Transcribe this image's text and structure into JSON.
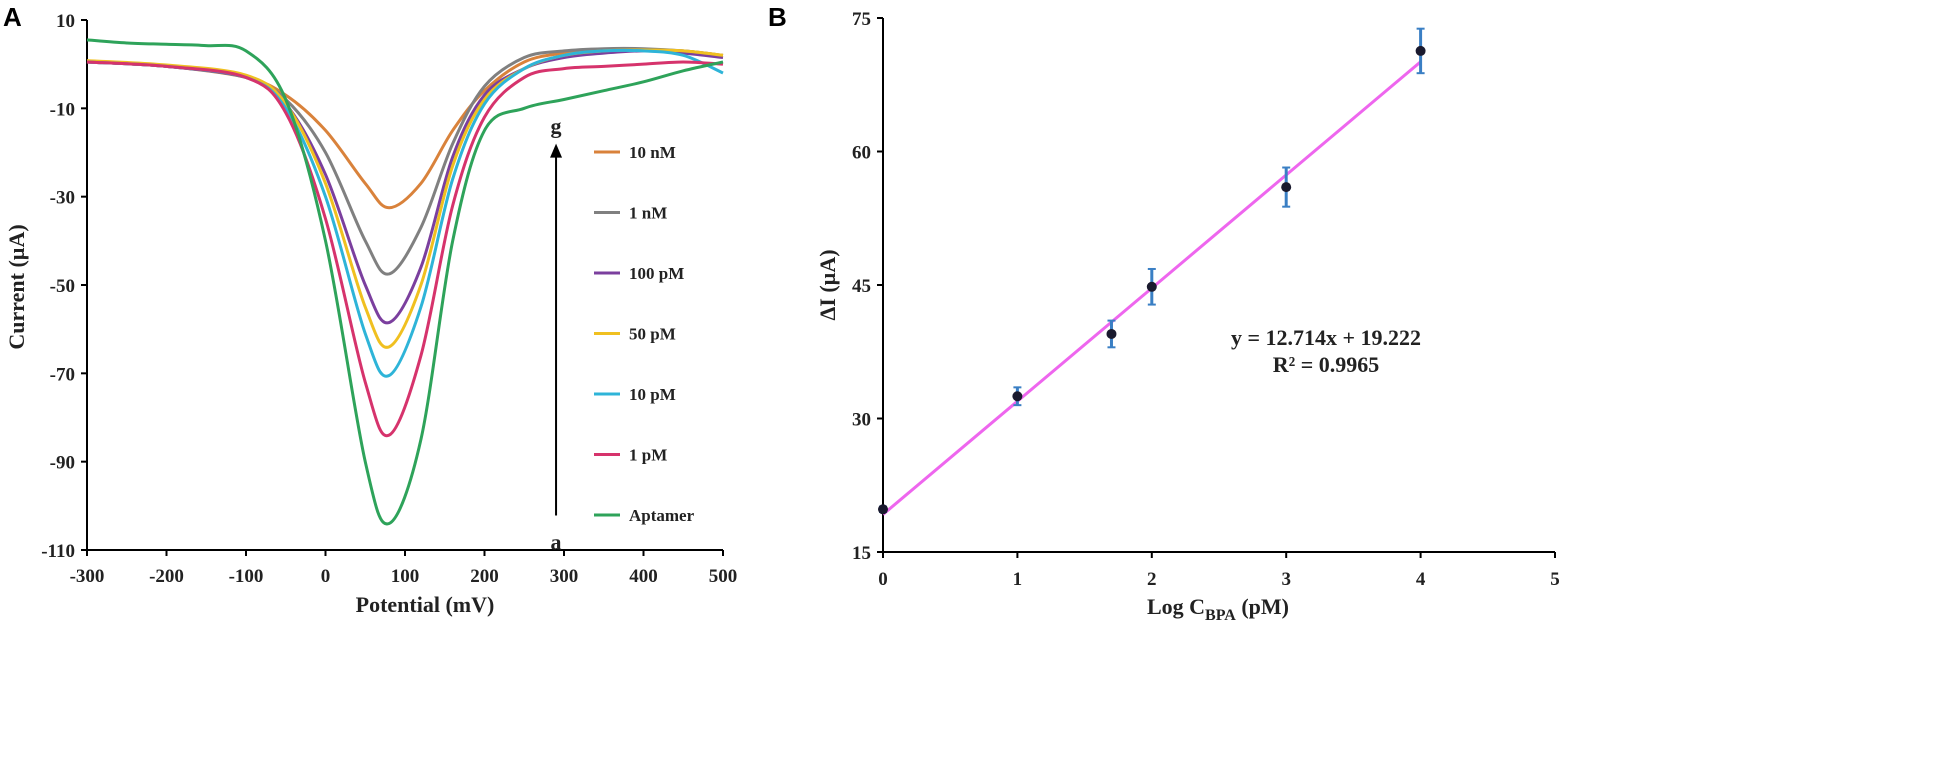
{
  "panels": {
    "a": {
      "letter": "A"
    },
    "b": {
      "letter": "B"
    }
  },
  "chart_data": [
    {
      "type": "line",
      "panel": "A",
      "xlabel": "Potential (mV)",
      "ylabel": "Current (µA)",
      "xlim": [
        -300,
        500
      ],
      "ylim": [
        -110,
        10
      ],
      "xticks": [
        -300,
        -200,
        -100,
        0,
        100,
        200,
        300,
        400,
        500
      ],
      "yticks": [
        10,
        -10,
        -30,
        -50,
        -70,
        -90,
        -110
      ],
      "xtick_labels": [
        "-300",
        "-200",
        "-100",
        "0",
        "100",
        "200",
        "300",
        "400",
        "500"
      ],
      "ytick_labels": [
        "10",
        "-10",
        "-30",
        "-50",
        "-70",
        "-90",
        "-110"
      ],
      "grid": false,
      "arrow": {
        "from_label": "a",
        "to_label": "g",
        "x": 290,
        "y_from": -104,
        "y_to": -18
      },
      "series": [
        {
          "name": "10 nM",
          "color": "#d9823b",
          "x": [
            -300,
            -200,
            -100,
            -50,
            0,
            50,
            80,
            120,
            160,
            200,
            250,
            300,
            350,
            400,
            450,
            500
          ],
          "y": [
            0.5,
            -0.5,
            -3,
            -7,
            -15,
            -27,
            -32.5,
            -27,
            -15,
            -6,
            0.5,
            2.5,
            3,
            3.2,
            3,
            2
          ]
        },
        {
          "name": "1 nM",
          "color": "#808080",
          "x": [
            -300,
            -200,
            -100,
            -50,
            0,
            50,
            80,
            120,
            160,
            200,
            250,
            300,
            350,
            400,
            450,
            500
          ],
          "y": [
            0.5,
            -0.5,
            -3,
            -8,
            -20,
            -40,
            -47.5,
            -37,
            -18,
            -5,
            1.5,
            3,
            3.5,
            3.5,
            3,
            2
          ]
        },
        {
          "name": "100 pM",
          "color": "#7b3f9e",
          "x": [
            -300,
            -200,
            -100,
            -50,
            0,
            50,
            80,
            120,
            160,
            200,
            250,
            300,
            350,
            400,
            450,
            500
          ],
          "y": [
            0.5,
            -0.5,
            -3,
            -9,
            -25,
            -50,
            -58.5,
            -46,
            -21,
            -7,
            -1,
            1.5,
            2.5,
            3,
            2.5,
            1.5
          ]
        },
        {
          "name": "50 pM",
          "color": "#f0c020",
          "x": [
            -300,
            -200,
            -100,
            -50,
            0,
            50,
            80,
            120,
            160,
            200,
            250,
            300,
            350,
            400,
            450,
            500
          ],
          "y": [
            0.8,
            -0.2,
            -2.5,
            -9,
            -27,
            -55,
            -64,
            -50,
            -23,
            -8,
            -1,
            2,
            3,
            3.2,
            3,
            2
          ]
        },
        {
          "name": "10 pM",
          "color": "#2eb4d8",
          "x": [
            -300,
            -200,
            -100,
            -50,
            0,
            50,
            80,
            120,
            160,
            200,
            250,
            300,
            350,
            400,
            450,
            500
          ],
          "y": [
            0.5,
            -0.5,
            -3,
            -10,
            -30,
            -61,
            -70.5,
            -55,
            -26,
            -9,
            -1,
            2,
            3,
            3,
            2,
            -2
          ]
        },
        {
          "name": "1 pM",
          "color": "#d6336c",
          "x": [
            -300,
            -200,
            -100,
            -50,
            0,
            50,
            80,
            120,
            160,
            200,
            250,
            300,
            350,
            400,
            450,
            500
          ],
          "y": [
            0.5,
            -0.5,
            -3,
            -11,
            -35,
            -72,
            -84,
            -66,
            -32,
            -12,
            -3,
            -1,
            -0.5,
            0,
            0.5,
            0
          ]
        },
        {
          "name": "Aptamer",
          "color": "#2ea35a",
          "x": [
            -300,
            -250,
            -200,
            -150,
            -100,
            -50,
            0,
            50,
            80,
            120,
            160,
            200,
            250,
            300,
            350,
            400,
            450,
            500
          ],
          "y": [
            5.5,
            4.8,
            4.5,
            4.2,
            3,
            -8,
            -40,
            -90,
            -104,
            -85,
            -40,
            -15,
            -10,
            -8,
            -6,
            -4,
            -1.5,
            0.5
          ]
        }
      ],
      "legend": [
        "10 nM",
        "1 nM",
        "100 pM",
        "50 pM",
        "10 pM",
        "1 pM",
        "Aptamer"
      ]
    },
    {
      "type": "scatter",
      "panel": "B",
      "xlabel_main": "Log  C",
      "xlabel_sub": "BPA",
      "xlabel_unit": " (pM)",
      "ylabel": "ΔI (µA)",
      "xlim": [
        0,
        5
      ],
      "ylim": [
        15,
        75
      ],
      "xticks": [
        0,
        1,
        2,
        3,
        4,
        5
      ],
      "yticks": [
        15,
        30,
        45,
        60,
        75
      ],
      "xtick_labels": [
        "0",
        "1",
        "2",
        "3",
        "4",
        "5"
      ],
      "ytick_labels": [
        "15",
        "30",
        "45",
        "60",
        "75"
      ],
      "grid": false,
      "points": [
        {
          "x": 0,
          "y": 19.8,
          "err": 0.3
        },
        {
          "x": 1,
          "y": 32.5,
          "err": 1.0
        },
        {
          "x": 1.7,
          "y": 39.5,
          "err": 1.5
        },
        {
          "x": 2,
          "y": 44.8,
          "err": 2.0
        },
        {
          "x": 3,
          "y": 56.0,
          "err": 2.2
        },
        {
          "x": 4,
          "y": 71.3,
          "err": 2.5
        }
      ],
      "fit": {
        "slope": 12.714,
        "intercept": 19.222,
        "x_range": [
          0,
          4
        ],
        "color": "#ee66ee"
      },
      "marker_color": "#1a1a2e",
      "errorbar_color": "#3a7fc4",
      "equation": "y = 12.714x + 19.222",
      "r2": "R² = 0.9965"
    }
  ]
}
